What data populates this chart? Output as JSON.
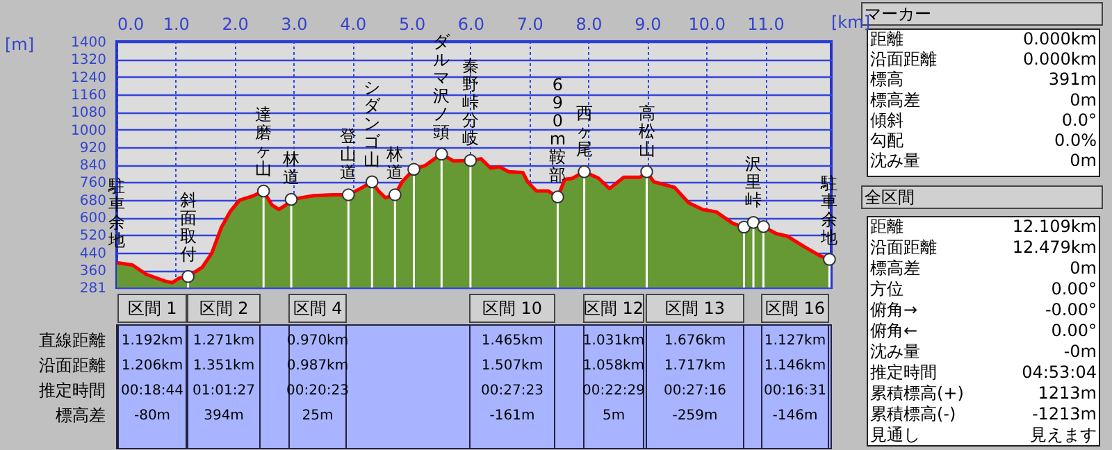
{
  "chart_data": {
    "type": "area",
    "xlabel": "[km]",
    "ylabel": "[m]",
    "xlim": [
      0,
      12.12
    ],
    "ylim": [
      281,
      1400
    ],
    "xticks": [
      {
        "value": 0,
        "label": "0.0"
      },
      {
        "value": 1,
        "label": "1.0"
      },
      {
        "value": 2,
        "label": "2.0"
      },
      {
        "value": 3,
        "label": "3.0"
      },
      {
        "value": 4,
        "label": "4.0"
      },
      {
        "value": 5,
        "label": "5.0"
      },
      {
        "value": 6,
        "label": "6.0"
      },
      {
        "value": 7,
        "label": "7.0"
      },
      {
        "value": 8,
        "label": "8.0"
      },
      {
        "value": 9,
        "label": "9.0"
      },
      {
        "value": 10,
        "label": "10.0"
      },
      {
        "value": 11,
        "label": "11.0"
      }
    ],
    "yticks": [
      281,
      360,
      440,
      520,
      600,
      680,
      760,
      840,
      920,
      1000,
      1080,
      1160,
      1240,
      1320,
      1400
    ],
    "grid": true,
    "series": [
      {
        "color": "#669933",
        "x": [
          0,
          0.27,
          0.5,
          0.82,
          0.94,
          1.06,
          1.21,
          1.45,
          1.61,
          1.77,
          1.92,
          2.08,
          2.32,
          2.49,
          2.63,
          2.75,
          2.87,
          2.96,
          3.34,
          3.66,
          3.93,
          4.13,
          4.33,
          4.44,
          4.56,
          4.72,
          4.84,
          5.04,
          5.23,
          5.39,
          5.51,
          5.71,
          6.0,
          6.18,
          6.34,
          6.49,
          6.65,
          6.89,
          6.97,
          7.12,
          7.32,
          7.48,
          7.6,
          7.72,
          7.93,
          8.17,
          8.36,
          8.6,
          8.88,
          8.99,
          9.11,
          9.46,
          9.7,
          9.94,
          10.17,
          10.45,
          10.64,
          10.8,
          10.97,
          11.19,
          11.38,
          11.66,
          11.93,
          12.09
        ],
        "values": [
          394,
          383,
          341,
          310,
          303,
          324,
          331,
          373,
          436,
          552,
          625,
          678,
          699,
          720,
          657,
          636,
          657,
          682,
          699,
          703,
          703,
          731,
          762,
          720,
          689,
          703,
          762,
          819,
          836,
          867,
          888,
          857,
          859,
          867,
          825,
          830,
          808,
          804,
          762,
          720,
          720,
          693,
          773,
          777,
          808,
          779,
          731,
          783,
          783,
          808,
          762,
          737,
          667,
          636,
          625,
          573,
          556,
          577,
          558,
          526,
          514,
          467,
          425,
          409
        ]
      },
      {
        "type": "line",
        "color": "#ff0000",
        "x": [
          0,
          0.27,
          0.5,
          0.82,
          0.94,
          1.06,
          1.21,
          1.45,
          1.61,
          1.77,
          1.92,
          2.08,
          2.32,
          2.49,
          2.63,
          2.75,
          2.87,
          2.96,
          3.34,
          3.66,
          3.93,
          4.13,
          4.33,
          4.44,
          4.56,
          4.72,
          4.84,
          5.04,
          5.23,
          5.39,
          5.51,
          5.71,
          6.0,
          6.18,
          6.34,
          6.49,
          6.65,
          6.89,
          6.97,
          7.12,
          7.32,
          7.48,
          7.6,
          7.72,
          7.93,
          8.17,
          8.36,
          8.6,
          8.88,
          8.99,
          9.11,
          9.46,
          9.7,
          9.94,
          10.17,
          10.45,
          10.64,
          10.8,
          10.97,
          11.19,
          11.38,
          11.66,
          11.93,
          12.09
        ],
        "values": [
          394,
          383,
          341,
          310,
          303,
          324,
          331,
          373,
          436,
          552,
          625,
          678,
          699,
          720,
          657,
          636,
          657,
          682,
          699,
          703,
          703,
          731,
          762,
          720,
          689,
          703,
          762,
          819,
          836,
          867,
          888,
          857,
          859,
          867,
          825,
          830,
          808,
          804,
          762,
          720,
          720,
          693,
          773,
          777,
          808,
          779,
          731,
          783,
          783,
          808,
          762,
          737,
          667,
          636,
          625,
          573,
          556,
          577,
          558,
          526,
          514,
          467,
          425,
          409
        ]
      },
      {
        "type": "lollipop",
        "color": "#ffffff",
        "marker": "circle",
        "x": [
          1.21,
          2.49,
          2.96,
          3.93,
          4.33,
          4.72,
          5.04,
          5.51,
          6.0,
          7.48,
          7.93,
          8.99,
          10.64,
          10.8,
          10.97,
          12.09
        ],
        "values": [
          331,
          720,
          682,
          703,
          762,
          703,
          819,
          888,
          859,
          693,
          808,
          808,
          556,
          577,
          558,
          409
        ]
      }
    ],
    "annotations": [
      {
        "text": "駐車余地",
        "x": 0,
        "y": 394
      },
      {
        "text": "斜面取付",
        "x": 1.21,
        "y": 331
      },
      {
        "text": "達磨ヶ山",
        "x": 2.49,
        "y": 720
      },
      {
        "text": "林道",
        "x": 2.96,
        "y": 682
      },
      {
        "text": "登山道",
        "x": 3.93,
        "y": 703
      },
      {
        "text": "シダンゴ山",
        "x": 4.33,
        "y": 762
      },
      {
        "text": "林道",
        "x": 4.72,
        "y": 703
      },
      {
        "text": "ダルマ沢ノ頭",
        "x": 5.51,
        "y": 888
      },
      {
        "text": "秦野峠分岐",
        "x": 6.0,
        "y": 859
      },
      {
        "text": "690m鞍部",
        "x": 7.48,
        "y": 693
      },
      {
        "text": "西ヶ尾",
        "x": 7.93,
        "y": 808
      },
      {
        "text": "高松山",
        "x": 8.99,
        "y": 808
      },
      {
        "text": "沢里峠",
        "x": 10.8,
        "y": 577
      },
      {
        "text": "駐車余地",
        "x": 12.09,
        "y": 409
      },
      "直線距離",
      "沿面距離",
      "推定時間",
      "標高差",
      "区間 1",
      "1.192km",
      "1.206km",
      "00:18:44",
      "-80m",
      "区間 2",
      "1.271km",
      "1.351km",
      "01:01:27",
      "394m",
      "区間 4",
      "0.970km",
      "0.987km",
      "00:20:23",
      "25m",
      "区間 10",
      "1.465km",
      "1.507km",
      "00:27:23",
      "-161m",
      "区間 12",
      "1.031km",
      "1.058km",
      "00:22:29",
      "5m",
      "区間 13",
      "1.676km",
      "1.717km",
      "00:27:16",
      "-259m",
      "区間 16",
      "1.127km",
      "1.146km",
      "00:16:31",
      "-146m",
      "マーカー",
      "距離",
      "0.000km",
      "沿面距離",
      "0.000km",
      "標高",
      "391m",
      "標高差",
      "0m",
      "傾斜",
      "0.0°",
      "勾配",
      "0.0%",
      "沈み量",
      "0m",
      "全区間",
      "距離",
      "12.109km",
      "沿面距離",
      "12.479km",
      "標高差",
      "0m",
      "方位",
      "0.00°",
      "俯角→",
      "-0.00°",
      "俯角←",
      "0.00°",
      "沈み量",
      "-0m",
      "推定時間",
      "04:53:04",
      "累積標高(+)",
      "1213m",
      "累積標高(-)",
      "-1213m",
      "見通し",
      "見えます"
    ]
  }
}
